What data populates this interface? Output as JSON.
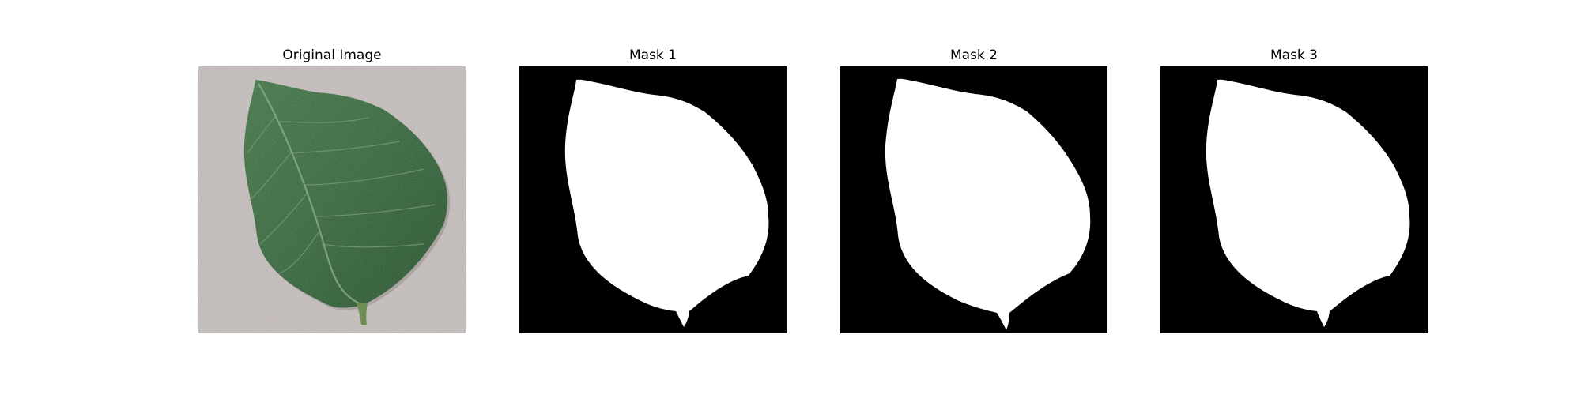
{
  "panels": [
    {
      "title": "Original Image",
      "type": "photo"
    },
    {
      "title": "Mask 1",
      "type": "mask"
    },
    {
      "title": "Mask 2",
      "type": "mask"
    },
    {
      "title": "Mask 3",
      "type": "mask"
    }
  ],
  "colors": {
    "background": "#ffffff",
    "mask_background": "#000000",
    "mask_foreground": "#ffffff",
    "photo_background": "#c6bebd",
    "leaf_dark": "#3f6b46",
    "leaf_mid": "#4f7d55",
    "leaf_vein": "#8aa98a",
    "petiole": "#6f8d55"
  }
}
